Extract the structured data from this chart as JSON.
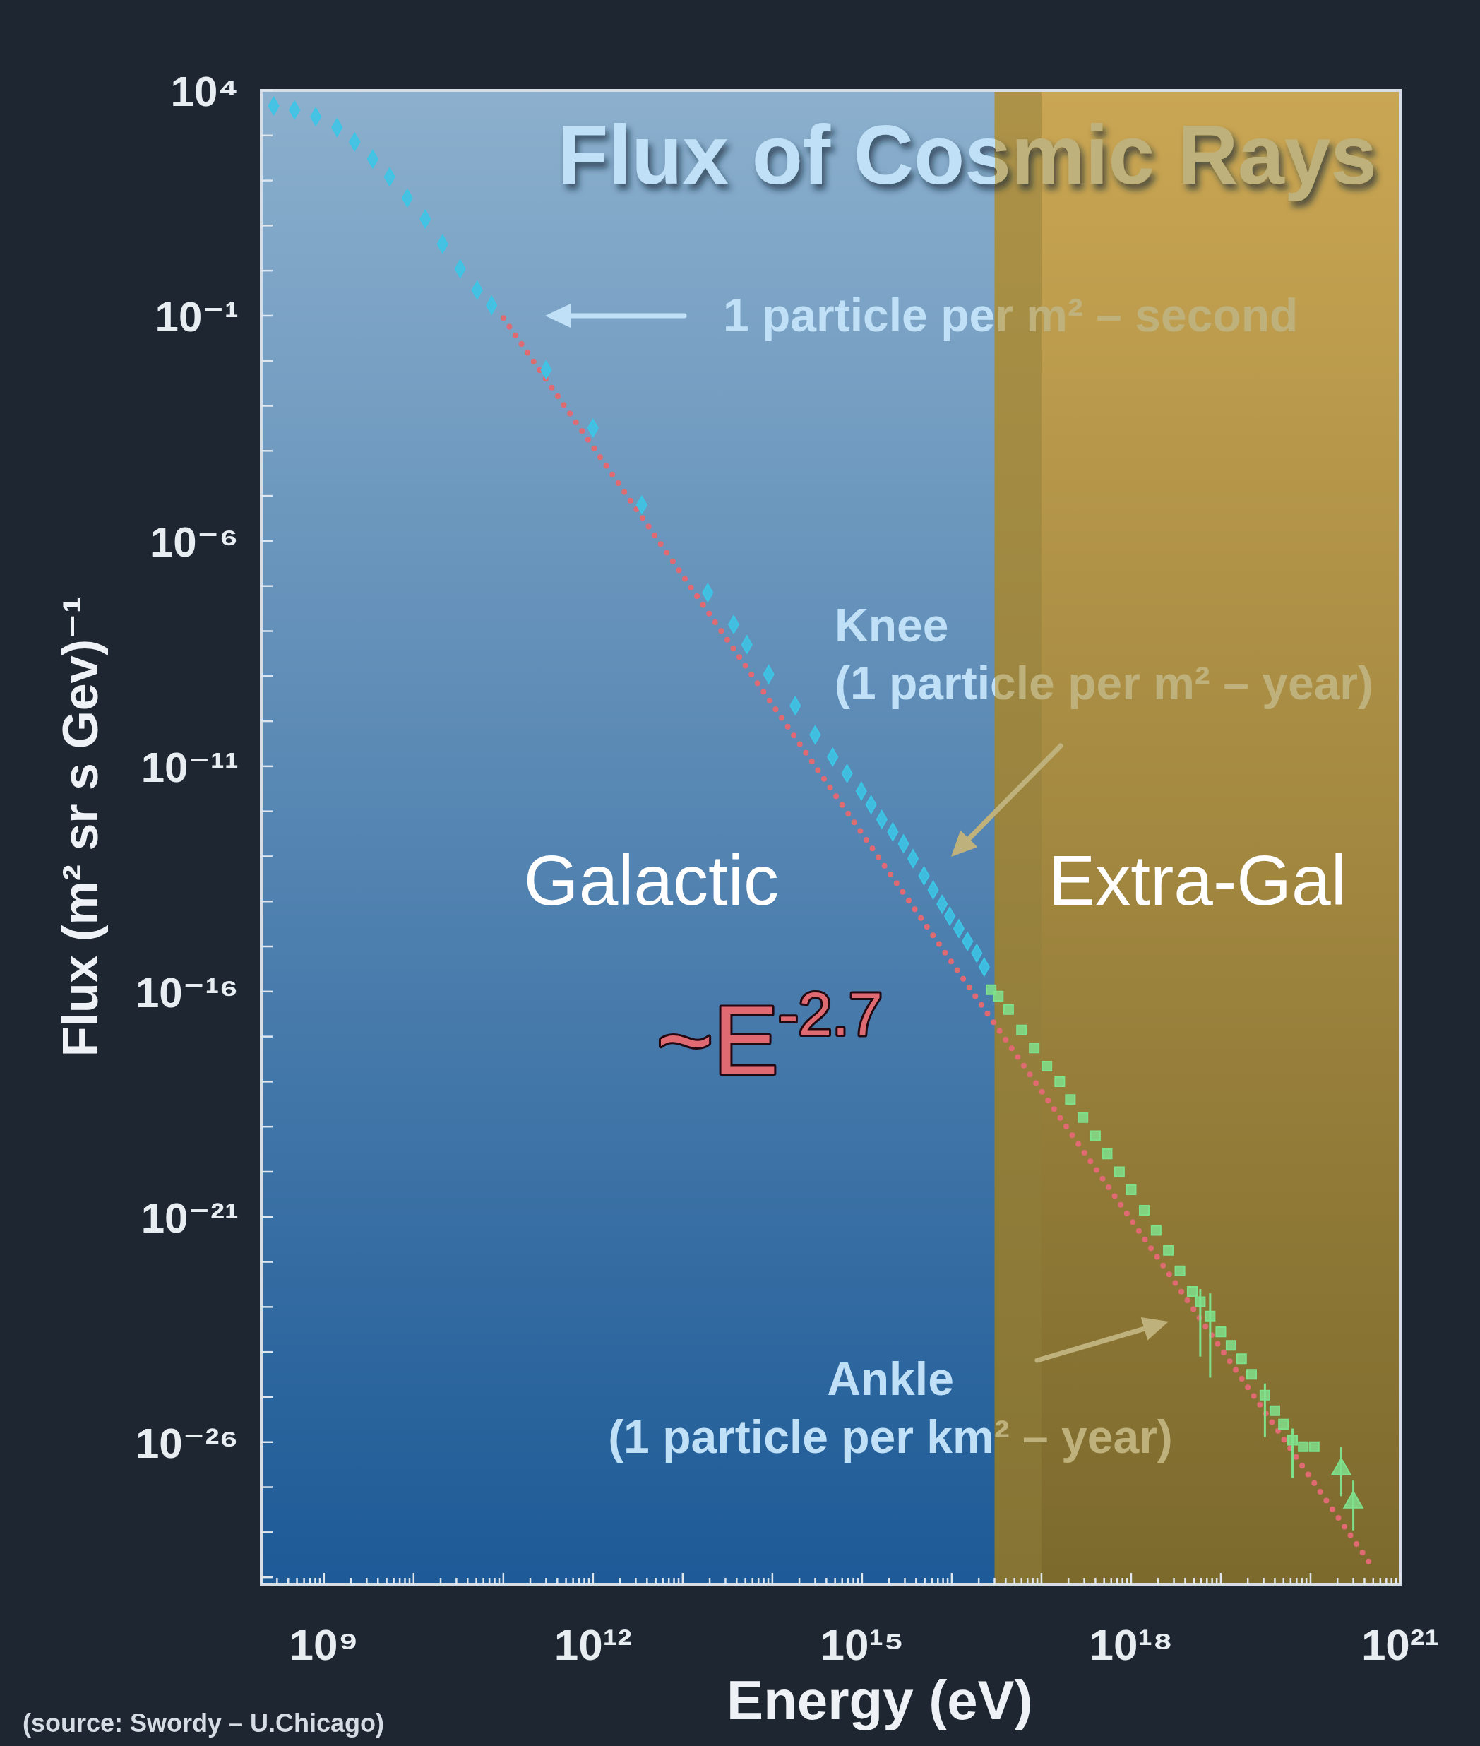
{
  "chart_data": {
    "type": "scatter",
    "title": "Flux of Cosmic Rays",
    "xlabel": "Energy (eV)",
    "ylabel": "Flux (m² sr s Gev)⁻¹",
    "log": "xy",
    "xlim": [
      200000000.0,
      1e+21
    ],
    "ylim": [
      7e-30,
      10000.0
    ],
    "xticks": [
      {
        "value": 200000000.0,
        "label": null
      },
      {
        "value": 300000000.0,
        "label": null
      },
      {
        "value": 400000000.0,
        "label": null
      },
      {
        "value": 500000000.0,
        "label": null
      },
      {
        "value": 600000000.0,
        "label": null
      },
      {
        "value": 700000000.0,
        "label": null
      },
      {
        "value": 800000000.0,
        "label": null
      },
      {
        "value": 900000000.0,
        "label": null
      },
      {
        "value": 1000000000.0,
        "label": "10⁹"
      },
      {
        "value": 2000000000.0,
        "label": null
      },
      {
        "value": 3000000000.0,
        "label": null
      },
      {
        "value": 4000000000.0,
        "label": null
      },
      {
        "value": 5000000000.0,
        "label": null
      },
      {
        "value": 6000000000.0,
        "label": null
      },
      {
        "value": 7000000000.0,
        "label": null
      },
      {
        "value": 8000000000.0,
        "label": null
      },
      {
        "value": 9000000000.0,
        "label": null
      },
      {
        "value": 10000000000.0,
        "label": null
      },
      {
        "value": 20000000000.0,
        "label": null
      },
      {
        "value": 30000000000.0,
        "label": null
      },
      {
        "value": 40000000000.0,
        "label": null
      },
      {
        "value": 50000000000.0,
        "label": null
      },
      {
        "value": 60000000000.0,
        "label": null
      },
      {
        "value": 70000000000.0,
        "label": null
      },
      {
        "value": 80000000000.0,
        "label": null
      },
      {
        "value": 90000000000.0,
        "label": null
      },
      {
        "value": 100000000000.0,
        "label": null
      },
      {
        "value": 200000000000.0,
        "label": null
      },
      {
        "value": 300000000000.0,
        "label": null
      },
      {
        "value": 400000000000.0,
        "label": null
      },
      {
        "value": 500000000000.0,
        "label": null
      },
      {
        "value": 600000000000.0,
        "label": null
      },
      {
        "value": 700000000000.0,
        "label": null
      },
      {
        "value": 800000000000.0,
        "label": null
      },
      {
        "value": 900000000000.0,
        "label": null
      },
      {
        "value": 1000000000000.0,
        "label": "10¹²"
      },
      {
        "value": 2000000000000.0,
        "label": null
      },
      {
        "value": 3000000000000.0,
        "label": null
      },
      {
        "value": 4000000000000.0,
        "label": null
      },
      {
        "value": 5000000000000.0,
        "label": null
      },
      {
        "value": 6000000000000.0,
        "label": null
      },
      {
        "value": 7000000000000.0,
        "label": null
      },
      {
        "value": 8000000000000.0,
        "label": null
      },
      {
        "value": 9000000000000.0,
        "label": null
      },
      {
        "value": 10000000000000.0,
        "label": null
      },
      {
        "value": 20000000000000.0,
        "label": null
      },
      {
        "value": 30000000000000.0,
        "label": null
      },
      {
        "value": 40000000000000.0,
        "label": null
      },
      {
        "value": 50000000000000.0,
        "label": null
      },
      {
        "value": 60000000000000.0,
        "label": null
      },
      {
        "value": 70000000000000.0,
        "label": null
      },
      {
        "value": 80000000000000.0,
        "label": null
      },
      {
        "value": 90000000000000.0,
        "label": null
      },
      {
        "value": 100000000000000.0,
        "label": null
      },
      {
        "value": 200000000000000.0,
        "label": null
      },
      {
        "value": 300000000000000.0,
        "label": null
      },
      {
        "value": 400000000000000.0,
        "label": null
      },
      {
        "value": 500000000000000.0,
        "label": null
      },
      {
        "value": 600000000000000.0,
        "label": null
      },
      {
        "value": 700000000000000.0,
        "label": null
      },
      {
        "value": 800000000000000.0,
        "label": null
      },
      {
        "value": 900000000000000.0,
        "label": null
      },
      {
        "value": 1000000000000000.0,
        "label": "10¹⁵"
      },
      {
        "value": 2000000000000000.0,
        "label": null
      },
      {
        "value": 3000000000000000.0,
        "label": null
      },
      {
        "value": 4000000000000000.0,
        "label": null
      },
      {
        "value": 5000000000000000.0,
        "label": null
      },
      {
        "value": 6000000000000000.0,
        "label": null
      },
      {
        "value": 7000000000000000.0,
        "label": null
      },
      {
        "value": 8000000000000000.0,
        "label": null
      },
      {
        "value": 9000000000000000.0,
        "label": null
      },
      {
        "value": 1e+16,
        "label": null
      },
      {
        "value": 2e+16,
        "label": null
      },
      {
        "value": 3e+16,
        "label": null
      },
      {
        "value": 4e+16,
        "label": null
      },
      {
        "value": 5e+16,
        "label": null
      },
      {
        "value": 6e+16,
        "label": null
      },
      {
        "value": 7e+16,
        "label": null
      },
      {
        "value": 8e+16,
        "label": null
      },
      {
        "value": 9e+16,
        "label": null
      },
      {
        "value": 1e+17,
        "label": null
      },
      {
        "value": 2e+17,
        "label": null
      },
      {
        "value": 3e+17,
        "label": null
      },
      {
        "value": 4e+17,
        "label": null
      },
      {
        "value": 5e+17,
        "label": null
      },
      {
        "value": 6e+17,
        "label": null
      },
      {
        "value": 7e+17,
        "label": null
      },
      {
        "value": 8e+17,
        "label": null
      },
      {
        "value": 9e+17,
        "label": null
      },
      {
        "value": 1e+18,
        "label": "10¹⁸"
      },
      {
        "value": 2e+18,
        "label": null
      },
      {
        "value": 3e+18,
        "label": null
      },
      {
        "value": 4e+18,
        "label": null
      },
      {
        "value": 5e+18,
        "label": null
      },
      {
        "value": 6e+18,
        "label": null
      },
      {
        "value": 7e+18,
        "label": null
      },
      {
        "value": 8e+18,
        "label": null
      },
      {
        "value": 9e+18,
        "label": null
      },
      {
        "value": 1e+19,
        "label": null
      },
      {
        "value": 2e+19,
        "label": null
      },
      {
        "value": 3e+19,
        "label": null
      },
      {
        "value": 4e+19,
        "label": null
      },
      {
        "value": 5e+19,
        "label": null
      },
      {
        "value": 6e+19,
        "label": null
      },
      {
        "value": 7e+19,
        "label": null
      },
      {
        "value": 8e+19,
        "label": null
      },
      {
        "value": 9e+19,
        "label": null
      },
      {
        "value": 1e+20,
        "label": null
      },
      {
        "value": 2e+20,
        "label": null
      },
      {
        "value": 3e+20,
        "label": null
      },
      {
        "value": 4e+20,
        "label": null
      },
      {
        "value": 5e+20,
        "label": null
      },
      {
        "value": 6e+20,
        "label": null
      },
      {
        "value": 7e+20,
        "label": null
      },
      {
        "value": 8e+20,
        "label": null
      },
      {
        "value": 9e+20,
        "label": null
      },
      {
        "value": 1e+21,
        "label": "10²¹"
      }
    ],
    "yticks": [
      {
        "value": 10000.0,
        "label": "10⁴"
      },
      {
        "value": 1000.0,
        "label": null
      },
      {
        "value": 100.0,
        "label": null
      },
      {
        "value": 10.0,
        "label": null
      },
      {
        "value": 1,
        "label": null
      },
      {
        "value": 0.1,
        "label": "10⁻¹"
      },
      {
        "value": 0.01,
        "label": null
      },
      {
        "value": 0.001,
        "label": null
      },
      {
        "value": 0.0001,
        "label": null
      },
      {
        "value": 1e-05,
        "label": null
      },
      {
        "value": 1e-06,
        "label": "10⁻⁶"
      },
      {
        "value": 1e-07,
        "label": null
      },
      {
        "value": 1e-08,
        "label": null
      },
      {
        "value": 1e-09,
        "label": null
      },
      {
        "value": 1e-10,
        "label": null
      },
      {
        "value": 1e-11,
        "label": "10⁻¹¹"
      },
      {
        "value": 1e-12,
        "label": null
      },
      {
        "value": 1e-13,
        "label": null
      },
      {
        "value": 1e-14,
        "label": null
      },
      {
        "value": 1e-15,
        "label": null
      },
      {
        "value": 1e-16,
        "label": "10⁻¹⁶"
      },
      {
        "value": 1e-17,
        "label": null
      },
      {
        "value": 1e-18,
        "label": null
      },
      {
        "value": 1e-19,
        "label": null
      },
      {
        "value": 1e-20,
        "label": null
      },
      {
        "value": 1e-21,
        "label": "10⁻²¹"
      },
      {
        "value": 1e-22,
        "label": null
      },
      {
        "value": 1e-23,
        "label": null
      },
      {
        "value": 1e-24,
        "label": null
      },
      {
        "value": 1e-25,
        "label": null
      },
      {
        "value": 1e-26,
        "label": "10⁻²⁶"
      },
      {
        "value": 1e-27,
        "label": null
      },
      {
        "value": 1e-28,
        "label": null
      },
      {
        "value": 1e-29,
        "label": null
      }
    ],
    "bands": [
      {
        "axis": "x",
        "from": 200000000.0,
        "to": 1e+17,
        "label": "Galactic",
        "color": "#3a78ab"
      },
      {
        "axis": "x",
        "from": 3e+16,
        "to": 1e+21,
        "label": "Extra-Gal",
        "color": "#be8200"
      }
    ],
    "series": [
      {
        "type": "line",
        "name": "~E$^{-2.7}$",
        "color": "#e06a72",
        "line_style": "dotted",
        "marker": "none",
        "x": [
          100000000000.0,
          10000000000000.0,
          1000000000000000.0,
          1e+17,
          1e+19,
          5e+20
        ],
        "values": [
          0.089,
          1.7e-07,
          3.2e-13,
          6.2e-19,
          1.2e-24,
          1.6e-29
        ]
      },
      {
        "type": "scatter",
        "color": "#3cc6e6",
        "marker": "diamond",
        "x": [
          275000000.0,
          470000000.0,
          810000000.0,
          1400000000.0,
          2200000000.0,
          3500000000.0,
          5400000000.0,
          8500000000.0,
          13500000000.0,
          21000000000.0,
          33000000000.0,
          51000000000.0,
          74000000000.0,
          300000000000.0,
          1000000000000.0,
          3500000000000.0,
          19000000000000.0,
          37000000000000.0,
          52000000000000.0,
          91000000000000.0,
          180000000000000.0,
          300000000000000.0,
          470000000000000.0,
          680000000000000.0,
          980000000000000.0,
          1260000000000000.0,
          1660000000000000.0,
          2200000000000000.0,
          2900000000000000.0,
          3700000000000000.0,
          4900000000000000.0,
          6200000000000000.0,
          7800000000000000.0,
          9500000000000000.0,
          1.2e+16,
          1.5e+16,
          1.9e+16,
          2.3e+16
        ],
        "values": [
          4500.0,
          3700.0,
          2600.0,
          1500.0,
          720,
          300,
          120,
          41,
          14,
          3.9,
          1.1,
          0.37,
          0.17,
          0.0063,
          0.00032,
          6.3e-06,
          7.1e-08,
          1.4e-08,
          5e-09,
          1.1e-09,
          2.2e-10,
          5e-11,
          1.6e-11,
          6.9e-12,
          2.8e-12,
          1.4e-12,
          6.6e-13,
          3.5e-13,
          1.9e-13,
          8.9e-14,
          3.7e-14,
          1.8e-14,
          8.7e-15,
          4.7e-15,
          2.5e-15,
          1.3e-15,
          7.1e-16,
          3.5e-16
        ]
      },
      {
        "type": "scatter",
        "color": "#7fe08c",
        "marker": "square",
        "x": [
          2.75e+16,
          3.3e+16,
          4.3e+16,
          6e+16,
          8.3e+16,
          1.15e+17,
          1.6e+17,
          2.1e+17,
          2.9e+17,
          4e+17,
          5.4e+17,
          7.4e+17,
          1e+18,
          1.4e+18,
          1.9e+18,
          2.6e+18,
          3.5e+18,
          4.8e+18,
          5.9e+18,
          7.6e+18,
          1e+19,
          1.3e+19,
          1.7e+19,
          2.2e+19,
          3.1e+19,
          4e+19,
          5e+19,
          6.3e+19,
          8.3e+19,
          1.1e+20
        ],
        "values": [
          1.1e-16,
          7.9e-17,
          4e-17,
          1.4e-17,
          5.6e-18,
          2.2e-18,
          1e-18,
          4e-19,
          1.6e-19,
          6.3e-20,
          2.5e-20,
          1e-20,
          4e-21,
          1.4e-21,
          5e-22,
          1.8e-22,
          6.3e-23,
          2.2e-23,
          1.3e-23,
          6.3e-24,
          2.8e-24,
          1.4e-24,
          7.1e-25,
          3.2e-25,
          1.1e-25,
          5e-26,
          2.5e-26,
          1.1e-26,
          7.9e-27,
          7.9e-27
        ],
        "errors": [
          null,
          null,
          null,
          null,
          null,
          null,
          null,
          null,
          null,
          null,
          null,
          null,
          null,
          null,
          null,
          null,
          null,
          null,
          [
            7.9e-25,
            2.5e-23
          ],
          [
            2.7e-25,
            2e-23
          ],
          null,
          null,
          null,
          null,
          [
            1.3e-26,
            2e-25
          ],
          null,
          null,
          [
            1.6e-27,
            2e-26
          ],
          null,
          null
        ]
      },
      {
        "type": "scatter",
        "color": "#7fe08c",
        "marker": "triangle",
        "x": [
          2.2e+20,
          3e+20
        ],
        "values": [
          2.5e-27,
          4.6e-28
        ],
        "errors": [
          [
            6.3e-28,
            7.9e-27
          ],
          [
            1.1e-28,
            1.4e-27
          ]
        ]
      }
    ],
    "annotations": [
      "1 particle per m² – second",
      "Knee\n(1 particle per m² – year)",
      "Ankle\n(1 particle per km² – year)",
      "(source: Swordy – U.Chicago)"
    ]
  }
}
